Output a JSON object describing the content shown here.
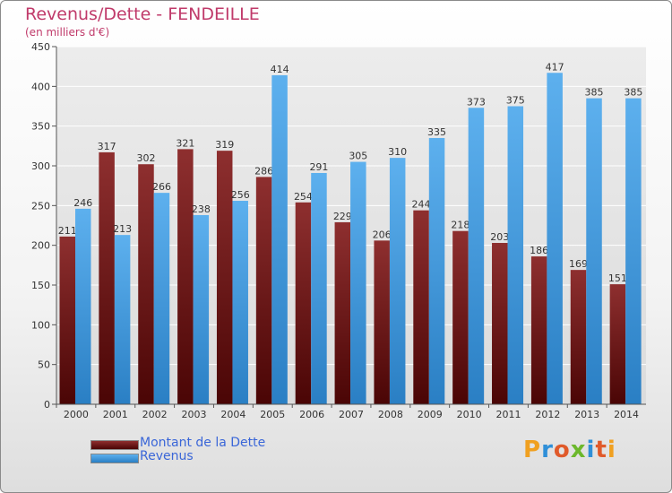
{
  "title": "Revenus/Dette - FENDEILLE",
  "subtitle": "(en milliers d'€)",
  "legend": [
    {
      "label": "Montant de la Dette",
      "color": "#7a1818"
    },
    {
      "label": "Revenus",
      "color": "#4fa6e8"
    }
  ],
  "logo": {
    "text": "Proxiti",
    "colors": [
      "#f0a020",
      "#2f8fd8",
      "#e05a2a",
      "#6cb82c",
      "#2f8fd8",
      "#e05a2a",
      "#f0a020"
    ]
  },
  "chart_data": {
    "type": "bar",
    "categories": [
      "2000",
      "2001",
      "2002",
      "2003",
      "2004",
      "2005",
      "2006",
      "2007",
      "2008",
      "2009",
      "2010",
      "2011",
      "2012",
      "2013",
      "2014"
    ],
    "series": [
      {
        "name": "Montant de la Dette",
        "values": [
          211,
          317,
          302,
          321,
          319,
          286,
          254,
          229,
          206,
          244,
          218,
          203,
          186,
          169,
          151
        ]
      },
      {
        "name": "Revenus",
        "values": [
          246,
          213,
          266,
          238,
          256,
          414,
          291,
          305,
          310,
          335,
          373,
          375,
          417,
          385,
          385
        ]
      }
    ],
    "ylim": [
      0,
      450
    ],
    "yticks": [
      0,
      50,
      100,
      150,
      200,
      250,
      300,
      350,
      400,
      450
    ],
    "grid": true
  }
}
